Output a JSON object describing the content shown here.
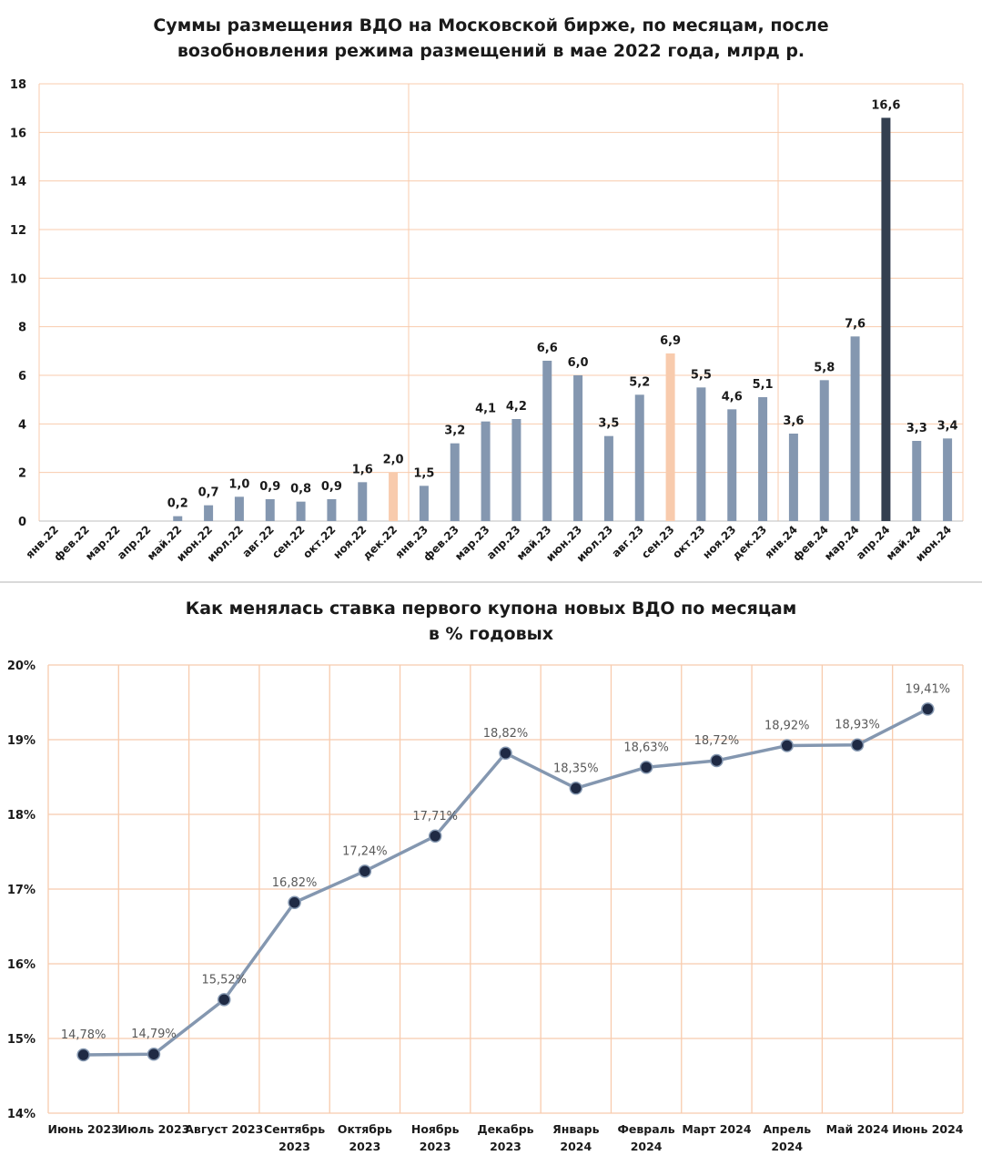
{
  "charts": [
    {
      "title_lines": [
        "Суммы размещения ВДО на Московской бирже, по месяцам, после",
        "возобновления режима размещений в мае 2022 года, млрд р."
      ]
    },
    {
      "title_lines": [
        "Как менялась ставка первого купона новых ВДО по месяцам",
        "в % годовых"
      ]
    }
  ],
  "chart_data": [
    {
      "type": "bar",
      "title": "Суммы размещения ВДО на Московской бирже, по месяцам, после возобновления режима размещений в мае 2022 года, млрд р.",
      "categories": [
        "янв.22",
        "фев.22",
        "мар.22",
        "апр.22",
        "май.22",
        "июн.22",
        "июл.22",
        "авг.22",
        "сен.22",
        "окт.22",
        "ноя.22",
        "дек.22",
        "янв.23",
        "фев.23",
        "мар.23",
        "апр.23",
        "май.23",
        "июн.23",
        "июл.23",
        "авг.23",
        "сен.23",
        "окт.23",
        "ноя.23",
        "дек.23",
        "янв.24",
        "фев.24",
        "мар.24",
        "апр.24",
        "май.24",
        "июн.24"
      ],
      "values": [
        0,
        0,
        0,
        0,
        0.2,
        0.65,
        1.0,
        0.9,
        0.8,
        0.9,
        1.6,
        2.0,
        1.45,
        3.2,
        4.1,
        4.2,
        6.6,
        6.0,
        3.5,
        5.2,
        6.9,
        5.5,
        4.6,
        5.1,
        3.6,
        5.8,
        7.6,
        16.6,
        3.3,
        3.4
      ],
      "data_labels": [
        "",
        "",
        "",
        "",
        "0,2",
        "0,7",
        "1,0",
        "0,9",
        "0,8",
        "0,9",
        "1,6",
        "2,0",
        "1,5",
        "3,2",
        "4,1",
        "4,2",
        "6,6",
        "6,0",
        "3,5",
        "5,2",
        "6,9",
        "5,5",
        "4,6",
        "5,1",
        "3,6",
        "5,8",
        "7,6",
        "16,6",
        "3,3",
        "3,4"
      ],
      "bar_colors": [
        "#8497b0",
        "#8497b0",
        "#8497b0",
        "#8497b0",
        "#8497b0",
        "#8497b0",
        "#8497b0",
        "#8497b0",
        "#8497b0",
        "#8497b0",
        "#8497b0",
        "#f8cbad",
        "#8497b0",
        "#8497b0",
        "#8497b0",
        "#8497b0",
        "#8497b0",
        "#8497b0",
        "#8497b0",
        "#8497b0",
        "#f8cbad",
        "#8497b0",
        "#8497b0",
        "#8497b0",
        "#8497b0",
        "#8497b0",
        "#8497b0",
        "#333f50",
        "#8497b0",
        "#8497b0"
      ],
      "ylim": [
        0,
        18
      ],
      "yticks": [
        "0",
        "2",
        "4",
        "6",
        "8",
        "10",
        "12",
        "14",
        "16",
        "18"
      ],
      "grid": true,
      "grid_color": "#f8cbad",
      "vertical_separators_after": [
        "дек.22",
        "дек.23"
      ]
    },
    {
      "type": "line",
      "title": "Как менялась ставка первого купона новых ВДО по месяцам в % годовых",
      "categories": [
        [
          "Июнь 2023"
        ],
        [
          "Июль 2023"
        ],
        [
          "Август 2023"
        ],
        [
          "Сентябрь",
          "2023"
        ],
        [
          "Октябрь",
          "2023"
        ],
        [
          "Ноябрь",
          "2023"
        ],
        [
          "Декабрь",
          "2023"
        ],
        [
          "Январь",
          "2024"
        ],
        [
          "Февраль",
          "2024"
        ],
        [
          "Март 2024"
        ],
        [
          "Апрель",
          "2024"
        ],
        [
          "Май 2024"
        ],
        [
          "Июнь 2024"
        ]
      ],
      "values": [
        14.78,
        14.79,
        15.52,
        16.82,
        17.24,
        17.71,
        18.82,
        18.35,
        18.63,
        18.72,
        18.92,
        18.93,
        19.41
      ],
      "data_labels": [
        "14,78%",
        "14,79%",
        "15,52%",
        "16,82%",
        "17,24%",
        "17,71%",
        "18,82%",
        "18,35%",
        "18,63%",
        "18,72%",
        "18,92%",
        "18,93%",
        "19,41%"
      ],
      "ylim": [
        14,
        20
      ],
      "yticks": [
        "14%",
        "15%",
        "16%",
        "17%",
        "18%",
        "19%",
        "20%"
      ],
      "grid": true,
      "grid_color": "#f8cbad",
      "line_color": "#8497b0",
      "marker_color": "#1f2a44"
    }
  ]
}
